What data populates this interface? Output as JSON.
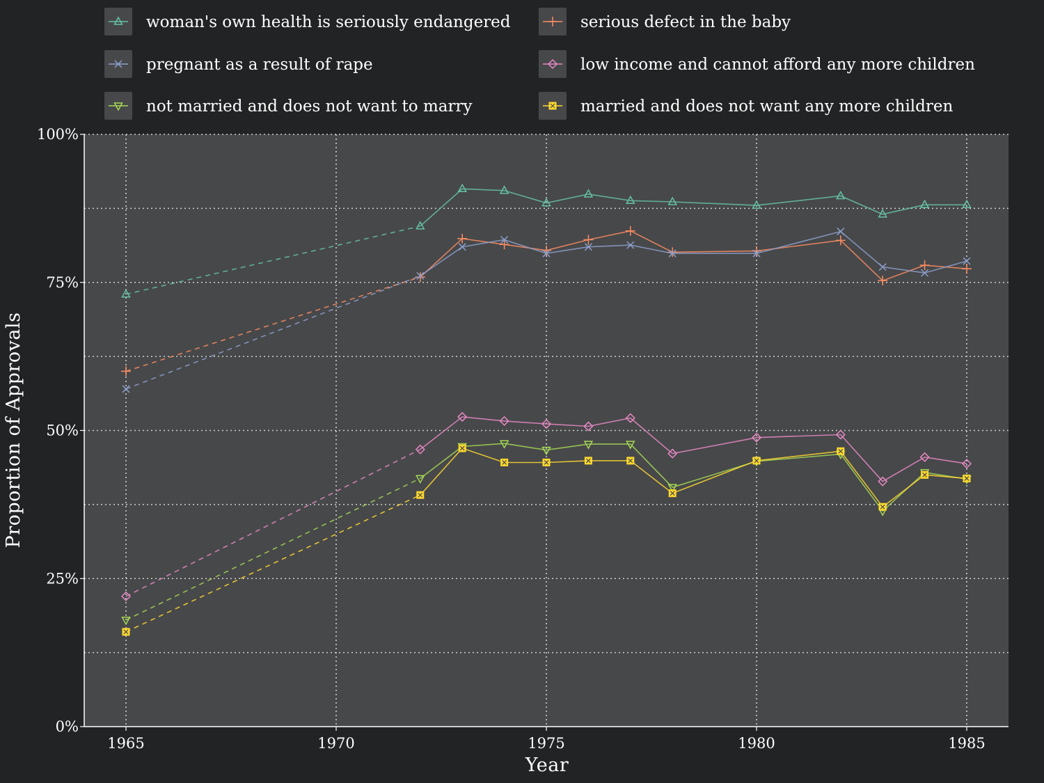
{
  "chart_data": {
    "type": "line",
    "xlabel": "Year",
    "ylabel": "Proportion of Approvals",
    "xlim": [
      1964,
      1986
    ],
    "ylim": [
      0,
      1
    ],
    "x_ticks": [
      1965,
      1970,
      1975,
      1980,
      1985
    ],
    "x_tick_labels": [
      "1965",
      "1970",
      "1975",
      "1980",
      "1985"
    ],
    "y_ticks": [
      0,
      0.25,
      0.5,
      0.75,
      1.0
    ],
    "y_tick_labels": [
      "0%",
      "25%",
      "50%",
      "75%",
      "100%"
    ],
    "y_gridlines": [
      0.125,
      0.25,
      0.375,
      0.5,
      0.625,
      0.75,
      0.875,
      1.0
    ],
    "grid": true,
    "legend_position": "top",
    "gap_style": "dashed segment between 1965 and 1972 (no surveys in between)",
    "colors": {
      "background": "#222325",
      "plot_background": "#47484a",
      "grid": "#d0d0d0"
    },
    "x": [
      1965,
      1972,
      1973,
      1974,
      1975,
      1976,
      1977,
      1978,
      1980,
      1982,
      1983,
      1984,
      1985
    ],
    "series": [
      {
        "name": "woman's own health is seriously endangered",
        "color": "#66c2a5",
        "marker": "triangle-up",
        "values": [
          0.73,
          0.845,
          0.908,
          0.905,
          0.884,
          0.899,
          0.888,
          0.886,
          0.88,
          0.896,
          0.865,
          0.881,
          0.881
        ]
      },
      {
        "name": "serious defect in the baby",
        "color": "#fc8d62",
        "marker": "plus",
        "values": [
          0.6,
          0.759,
          0.824,
          0.814,
          0.804,
          0.822,
          0.837,
          0.801,
          0.803,
          0.821,
          0.753,
          0.779,
          0.773
        ]
      },
      {
        "name": "pregnant as a result of rape",
        "color": "#8da0cb",
        "marker": "x",
        "values": [
          0.57,
          0.761,
          0.81,
          0.822,
          0.799,
          0.81,
          0.813,
          0.799,
          0.799,
          0.836,
          0.776,
          0.766,
          0.786
        ]
      },
      {
        "name": "low income and cannot afford any more children",
        "color": "#e78ac3",
        "marker": "diamond",
        "values": [
          0.22,
          0.468,
          0.523,
          0.516,
          0.511,
          0.507,
          0.521,
          0.461,
          0.488,
          0.493,
          0.414,
          0.455,
          0.444
        ]
      },
      {
        "name": "not married and does not want to marry",
        "color": "#a6d854",
        "marker": "triangle-down",
        "values": [
          0.18,
          0.419,
          0.473,
          0.478,
          0.467,
          0.477,
          0.477,
          0.404,
          0.448,
          0.46,
          0.364,
          0.429,
          0.418
        ]
      },
      {
        "name": "married and does not want any more children",
        "color": "#ffd92f",
        "marker": "square-x",
        "values": [
          0.16,
          0.391,
          0.47,
          0.446,
          0.446,
          0.449,
          0.449,
          0.394,
          0.449,
          0.465,
          0.371,
          0.425,
          0.419
        ]
      }
    ]
  }
}
